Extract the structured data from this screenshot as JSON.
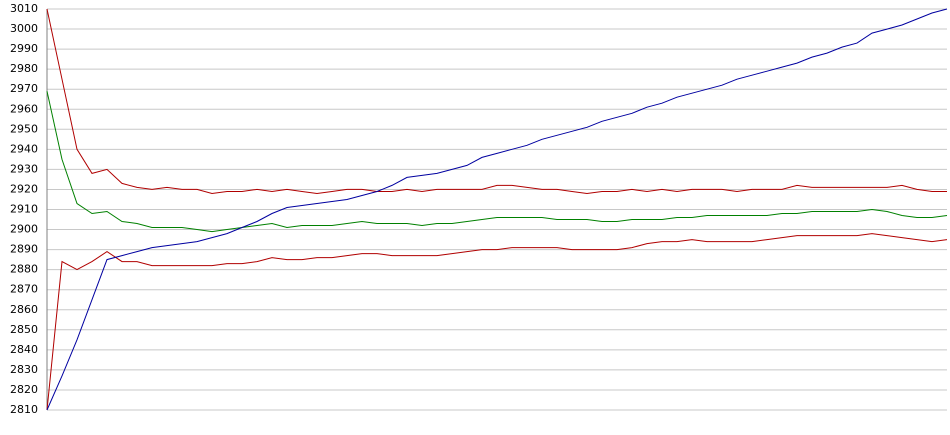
{
  "chart_data": {
    "type": "line",
    "categories": [
      null,
      null,
      null,
      null,
      null,
      null,
      null,
      null,
      null,
      null,
      null,
      null,
      null,
      null,
      null,
      null,
      null,
      null,
      null,
      null,
      null,
      null,
      null,
      null,
      null,
      null,
      null,
      null,
      null,
      null,
      null,
      null,
      null,
      null,
      null,
      null,
      null,
      null,
      null,
      null,
      null,
      null,
      null,
      null,
      null,
      null,
      null,
      null,
      null,
      null,
      null,
      null,
      null,
      null,
      null,
      null,
      null,
      null,
      null,
      null,
      null
    ],
    "series": [
      {
        "color": "#b00000",
        "values": [
          3010,
          2975,
          2940,
          2928,
          2930,
          2923,
          2921,
          2920,
          2921,
          2920,
          2920,
          2918,
          2919,
          2919,
          2920,
          2919,
          2920,
          2919,
          2918,
          2919,
          2920,
          2920,
          2919,
          2919,
          2920,
          2919,
          2920,
          2920,
          2920,
          2920,
          2922,
          2922,
          2921,
          2920,
          2920,
          2919,
          2918,
          2919,
          2919,
          2920,
          2919,
          2920,
          2919,
          2920,
          2920,
          2920,
          2919,
          2920,
          2920,
          2920,
          2922,
          2921,
          2921,
          2921,
          2921,
          2921,
          2921,
          2922,
          2920,
          2919,
          2919
        ]
      },
      {
        "color": "#008000",
        "values": [
          2969,
          2935,
          2913,
          2908,
          2909,
          2904,
          2903,
          2901,
          2901,
          2901,
          2900,
          2899,
          2900,
          2901,
          2902,
          2903,
          2901,
          2902,
          2902,
          2902,
          2903,
          2904,
          2903,
          2903,
          2903,
          2902,
          2903,
          2903,
          2904,
          2905,
          2906,
          2906,
          2906,
          2906,
          2905,
          2905,
          2905,
          2904,
          2904,
          2905,
          2905,
          2905,
          2906,
          2906,
          2907,
          2907,
          2907,
          2907,
          2907,
          2908,
          2908,
          2909,
          2909,
          2909,
          2909,
          2910,
          2909,
          2907,
          2906,
          2906,
          2907
        ]
      },
      {
        "color": "#b00000",
        "values": [
          2810,
          2884,
          2880,
          2884,
          2889,
          2884,
          2884,
          2882,
          2882,
          2882,
          2882,
          2882,
          2883,
          2883,
          2884,
          2886,
          2885,
          2885,
          2886,
          2886,
          2887,
          2888,
          2888,
          2887,
          2887,
          2887,
          2887,
          2888,
          2889,
          2890,
          2890,
          2891,
          2891,
          2891,
          2891,
          2890,
          2890,
          2890,
          2890,
          2891,
          2893,
          2894,
          2894,
          2895,
          2894,
          2894,
          2894,
          2894,
          2895,
          2896,
          2897,
          2897,
          2897,
          2897,
          2897,
          2898,
          2897,
          2896,
          2895,
          2894,
          2895
        ]
      },
      {
        "color": "#0000a0",
        "values": [
          2810,
          2827,
          2845,
          2865,
          2885,
          2887,
          2889,
          2891,
          2892,
          2893,
          2894,
          2896,
          2898,
          2901,
          2904,
          2908,
          2911,
          2912,
          2913,
          2914,
          2915,
          2917,
          2919,
          2922,
          2926,
          2927,
          2928,
          2930,
          2932,
          2936,
          2938,
          2940,
          2942,
          2945,
          2947,
          2949,
          2951,
          2954,
          2956,
          2958,
          2961,
          2963,
          2966,
          2968,
          2970,
          2972,
          2975,
          2977,
          2979,
          2981,
          2983,
          2986,
          2988,
          2991,
          2993,
          2998,
          3000,
          3002,
          3005,
          3008,
          3010
        ]
      }
    ],
    "ylim": [
      2810,
      3010
    ],
    "yticks": [
      2810,
      2820,
      2830,
      2840,
      2850,
      2860,
      2870,
      2880,
      2890,
      2900,
      2910,
      2920,
      2930,
      2940,
      2950,
      2960,
      2970,
      2980,
      2990,
      3000,
      3010
    ],
    "grid": true
  }
}
